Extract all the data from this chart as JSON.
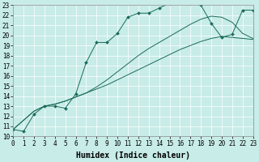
{
  "xlabel": "Humidex (Indice chaleur)",
  "xlim": [
    0,
    23
  ],
  "ylim": [
    10,
    23
  ],
  "xticks": [
    0,
    1,
    2,
    3,
    4,
    5,
    6,
    7,
    8,
    9,
    10,
    11,
    12,
    13,
    14,
    15,
    16,
    17,
    18,
    19,
    20,
    21,
    22,
    23
  ],
  "yticks": [
    10,
    11,
    12,
    13,
    14,
    15,
    16,
    17,
    18,
    19,
    20,
    21,
    22,
    23
  ],
  "bg_color": "#c8ece8",
  "line_color": "#1a6b5a",
  "series1_x": [
    0,
    1,
    2,
    3,
    4,
    5,
    6,
    7,
    8,
    9,
    10,
    11,
    12,
    13,
    14,
    15,
    16,
    17,
    18,
    19,
    20,
    21,
    22,
    23
  ],
  "series1_y": [
    10.7,
    10.5,
    12.2,
    13.0,
    13.0,
    12.8,
    14.2,
    17.3,
    19.3,
    19.3,
    20.2,
    21.8,
    22.2,
    22.2,
    22.7,
    23.2,
    23.3,
    23.2,
    23.0,
    21.2,
    19.8,
    20.1,
    22.5,
    22.5
  ],
  "series2_x": [
    0,
    2,
    3,
    4,
    5,
    6,
    7,
    8,
    9,
    10,
    11,
    12,
    13,
    14,
    15,
    16,
    17,
    18,
    19,
    20,
    21,
    22,
    23
  ],
  "series2_y": [
    10.7,
    12.5,
    13.0,
    13.2,
    13.5,
    13.9,
    14.3,
    14.7,
    15.1,
    15.6,
    16.1,
    16.6,
    17.1,
    17.6,
    18.1,
    18.6,
    19.0,
    19.4,
    19.7,
    19.9,
    19.8,
    19.7,
    19.6
  ],
  "series3_x": [
    0,
    2,
    3,
    4,
    5,
    6,
    7,
    8,
    9,
    10,
    11,
    12,
    13,
    14,
    15,
    16,
    17,
    18,
    19,
    20,
    21,
    22,
    23
  ],
  "series3_y": [
    10.7,
    12.5,
    13.0,
    13.2,
    13.5,
    13.9,
    14.3,
    14.9,
    15.6,
    16.4,
    17.2,
    18.0,
    18.7,
    19.3,
    19.9,
    20.5,
    21.1,
    21.6,
    21.9,
    21.8,
    21.3,
    20.2,
    19.7
  ],
  "tick_fontsize": 5.5,
  "label_fontsize": 7
}
